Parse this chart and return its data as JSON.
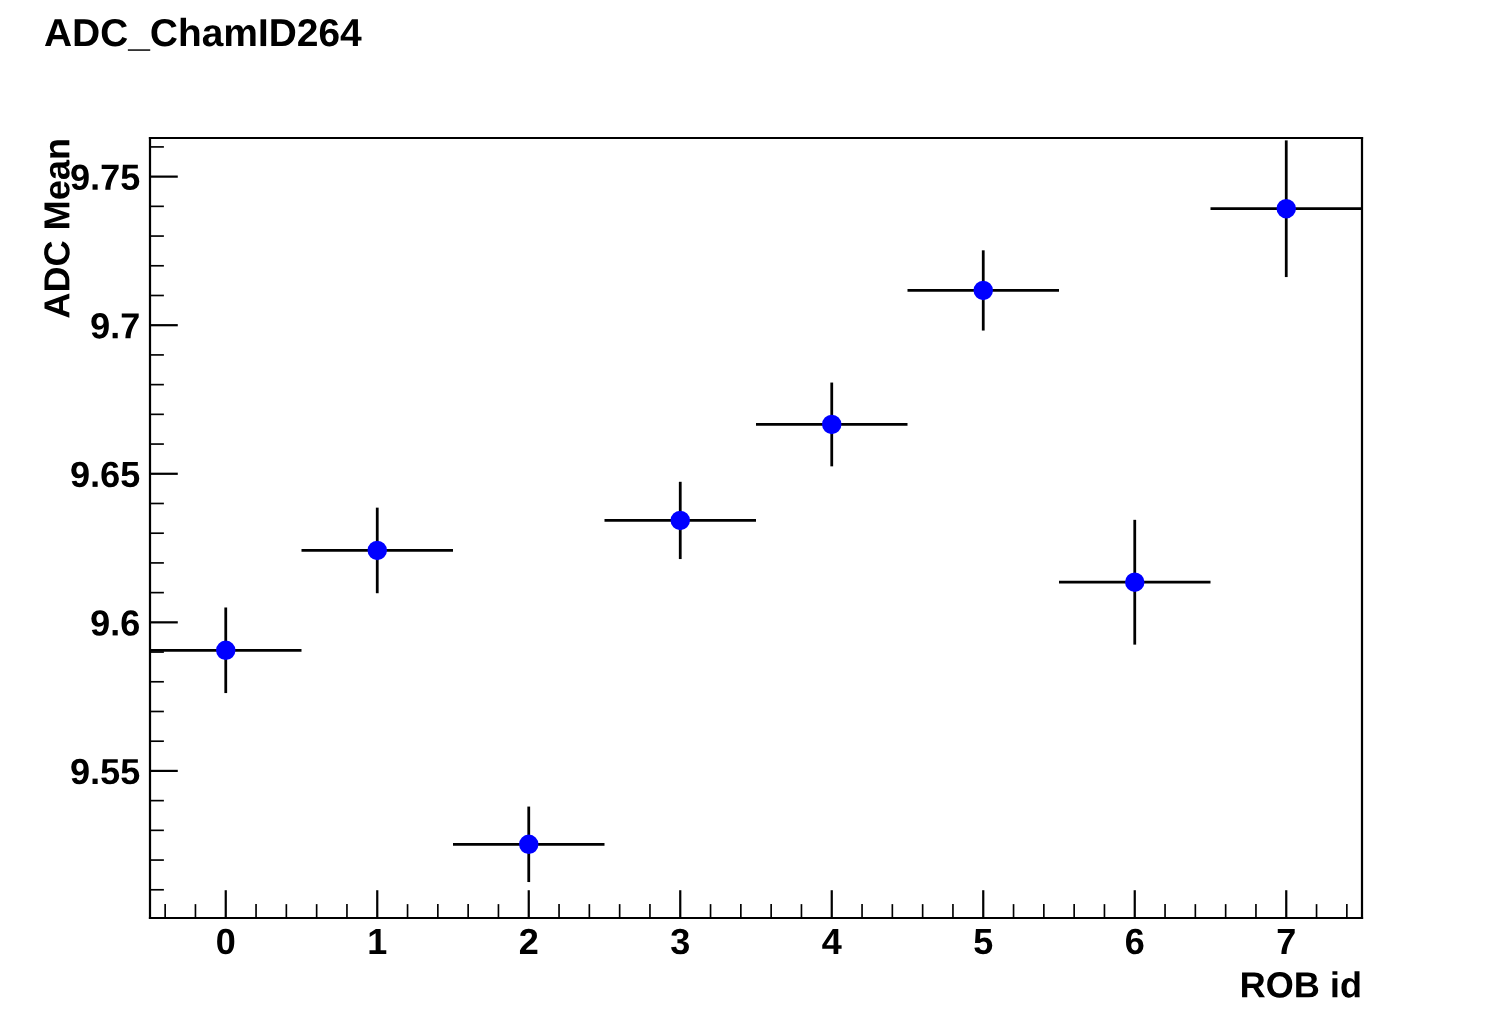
{
  "chart_data": {
    "type": "scatter",
    "title": "ADC_ChamID264",
    "xlabel": "ROB id",
    "ylabel": "ADC Mean",
    "x": [
      0,
      1,
      2,
      3,
      4,
      5,
      6,
      7
    ],
    "series": [
      {
        "color": "#0000ff",
        "values": [
          9.5906,
          9.6242,
          9.5253,
          9.6343,
          9.6666,
          9.7117,
          9.6135,
          9.7392
        ],
        "errors": [
          0.0144,
          0.0144,
          0.0127,
          0.013,
          0.0141,
          0.0135,
          0.021,
          0.023
        ],
        "xerrors": [
          0.5,
          0.5,
          0.5,
          0.5,
          0.5,
          0.5,
          0.5,
          0.5
        ]
      }
    ],
    "xlim": [
      -0.5,
      7.5
    ],
    "xticks": [
      0,
      1,
      2,
      3,
      4,
      5,
      6,
      7
    ],
    "ylim": [
      9.5005,
      9.763
    ],
    "yticks": [
      9.55,
      9.6,
      9.65,
      9.7,
      9.75
    ],
    "marker": "circle",
    "grid": false,
    "legend": false
  }
}
